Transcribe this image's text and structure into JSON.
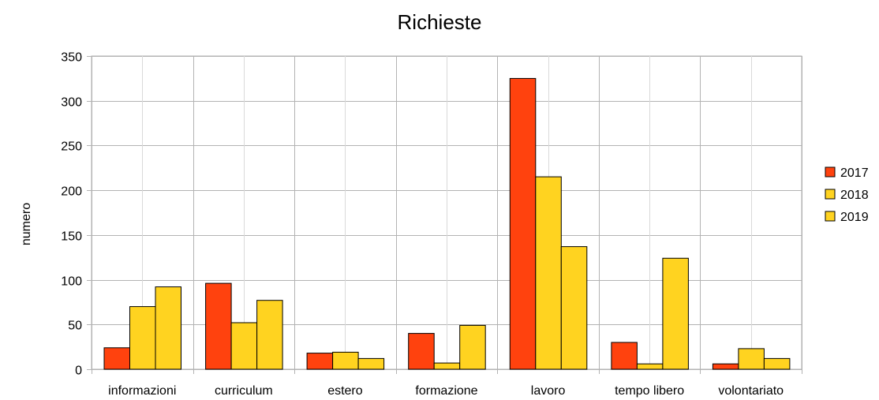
{
  "chart_data": {
    "type": "bar",
    "title": "Richieste",
    "xlabel": "",
    "ylabel": "numero",
    "ylim": [
      0,
      350
    ],
    "yticks": [
      0,
      50,
      100,
      150,
      200,
      250,
      300,
      350
    ],
    "categories": [
      "informazioni",
      "curriculum",
      "estero",
      "formazione",
      "lavoro",
      "tempo libero",
      "volontariato"
    ],
    "series": [
      {
        "name": "2017",
        "color": "#ff420e",
        "values": [
          24,
          96,
          18,
          40,
          325,
          30,
          6
        ]
      },
      {
        "name": "2018",
        "color": "#ffd320",
        "values": [
          70,
          52,
          19,
          7,
          215,
          6,
          23
        ]
      },
      {
        "name": "2019",
        "color": "#ffd320",
        "values": [
          92,
          77,
          12,
          49,
          137,
          124,
          12
        ]
      }
    ],
    "grid": true,
    "legend_position": "right"
  }
}
